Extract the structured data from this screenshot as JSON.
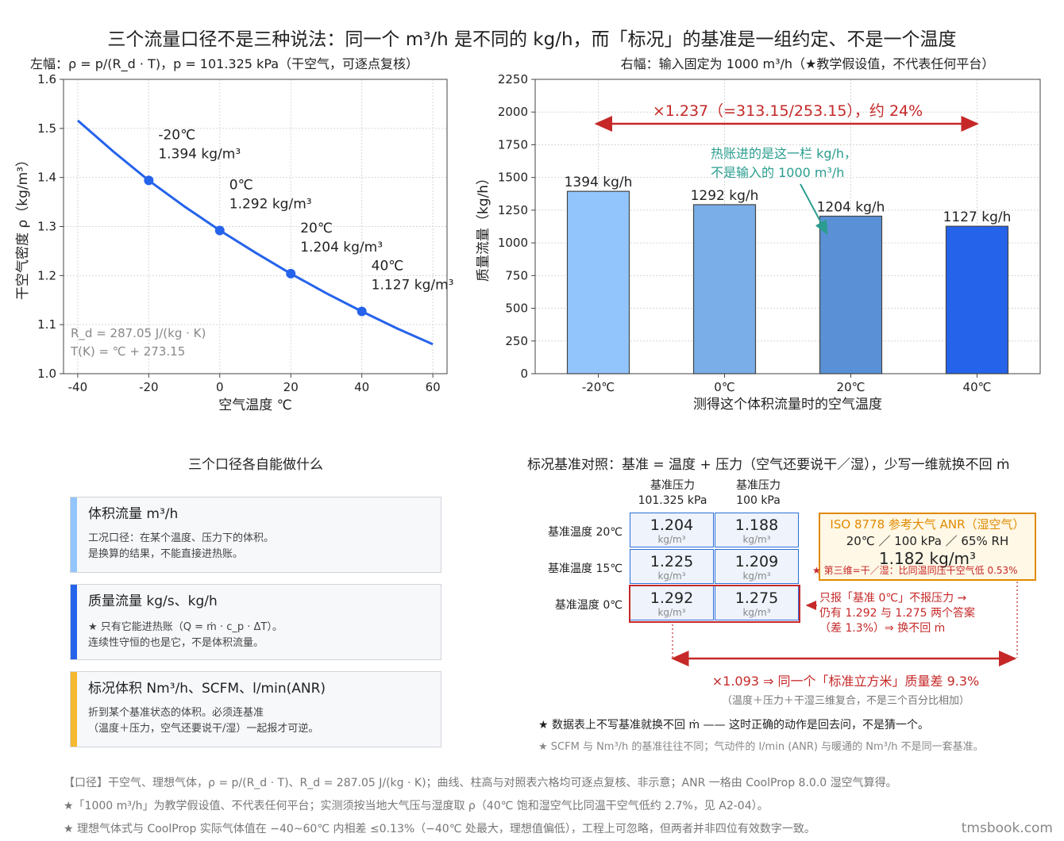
{
  "main_title": "三个流量口径不是三种说法：同一个 m³/h 是不同的 kg/h，而「标况」的基准是一组约定、不是一个温度",
  "chart_data": [
    {
      "type": "line",
      "title": "左幅：ρ = p/(R_d · T)，p = 101.325 kPa（干空气，可逐点复核）",
      "xlabel": "空气温度 ℃",
      "ylabel": "干空气密度 ρ（kg/m³）",
      "xlim": [
        -44,
        64
      ],
      "ylim": [
        1.0,
        1.6
      ],
      "xticks": [
        "-40",
        "-20",
        "0",
        "20",
        "40",
        "60"
      ],
      "yticks": [
        "1.0",
        "1.1",
        "1.2",
        "1.3",
        "1.4",
        "1.5",
        "1.6"
      ],
      "grid": true,
      "curve": {
        "x": [
          -40,
          -30,
          -20,
          -10,
          0,
          10,
          20,
          30,
          40,
          50,
          60
        ],
        "y": [
          1.516,
          1.453,
          1.394,
          1.341,
          1.292,
          1.247,
          1.204,
          1.164,
          1.127,
          1.092,
          1.06
        ]
      },
      "points": [
        {
          "x": -20,
          "y": 1.394,
          "label1": "-20℃",
          "label2": "1.394 kg/m³"
        },
        {
          "x": 0,
          "y": 1.292,
          "label1": "0℃",
          "label2": "1.292 kg/m³"
        },
        {
          "x": 20,
          "y": 1.204,
          "label1": "20℃",
          "label2": "1.204 kg/m³"
        },
        {
          "x": 40,
          "y": 1.127,
          "label1": "40℃",
          "label2": "1.127 kg/m³"
        }
      ],
      "notes": [
        "R_d = 287.05 J/(kg · K)",
        "T(K) = ℃ + 273.15"
      ],
      "color": "#2563eb"
    },
    {
      "type": "bar",
      "title": "右幅：输入固定为 1000 m³/h（★教学假设值，不代表任何平台）",
      "xlabel": "测得这个体积流量时的空气温度",
      "ylabel": "质量流量（kg/h）",
      "categories": [
        "-20℃",
        "0℃",
        "20℃",
        "40℃"
      ],
      "values": [
        1394,
        1292,
        1204,
        1127
      ],
      "value_labels": [
        "1394 kg/h",
        "1292 kg/h",
        "1204 kg/h",
        "1127 kg/h"
      ],
      "colors": [
        "#93c5fd",
        "#7aaee8",
        "#5a91d6",
        "#2563eb"
      ],
      "ylim": [
        0,
        2250
      ],
      "yticks": [
        "0",
        "250",
        "500",
        "750",
        "1000",
        "1250",
        "1500",
        "1750",
        "2000",
        "2250"
      ],
      "grid": true,
      "span_label": "×1.237（=313.15/253.15），约 24%",
      "annotation": [
        "热账进的是这一栏 kg/h，",
        "不是输入的 1000 m³/h"
      ],
      "annotation_color": "#2a9d8f"
    },
    {
      "type": "table",
      "title": "标况基准对照：基准 = 温度 + 压力（空气还要说干／湿），少写一维就换不回 ṁ",
      "columns": [
        [
          "基准压力",
          "101.325 kPa"
        ],
        [
          "基准压力",
          "100 kPa"
        ]
      ],
      "rows": [
        {
          "label": "基准温度 20℃",
          "values": [
            "1.204",
            "1.188"
          ]
        },
        {
          "label": "基准温度 15℃",
          "values": [
            "1.225",
            "1.209"
          ]
        },
        {
          "label": "基准温度 0℃",
          "values": [
            "1.292",
            "1.275"
          ]
        }
      ],
      "unit": "kg/m³"
    }
  ],
  "cards_title": "三个口径各自能做什么",
  "cards": [
    {
      "title": "体积流量  m³/h",
      "line1": "工况口径：在某个温度、压力下的体积。",
      "line2": "是换算的结果，不能直接进热账。",
      "color": "#93c5fd"
    },
    {
      "title": "质量流量  kg/s、kg/h",
      "line1": "★ 只有它能进热账（Q = ṁ · c_p · ΔT）。",
      "line2": "连续性守恒的也是它，不是体积流量。",
      "color": "#2563eb"
    },
    {
      "title": "标况体积  Nm³/h、SCFM、l/min(ANR)",
      "line1": "折到某个基准状态的体积。必须连基准",
      "line2": "（温度＋压力，空气还要说干/湿）一起报才可逆。",
      "color": "#f5b82e"
    }
  ],
  "iso_box": {
    "l1": "ISO 8778 参考大气 ANR（湿空气）",
    "l2": "20℃ ／ 100 kPa ／ 65% RH",
    "l3": "1.182 kg/m³",
    "l4": "★ 第三维=干／湿：比同温同压干空气低 0.53%"
  },
  "zero_note": [
    "只报「基准 0℃」不报压力 →",
    "仍有 1.292 与 1.275 两个答案",
    "（差 1.3%）⇒ 换不回 ṁ"
  ],
  "span_label": "×1.093 ⇒ 同一个「标准立方米」质量差 9.3%",
  "span_sub": "（温度＋压力＋干湿三维复合，不是三个百分比相加）",
  "table_note1": "★ 数据表上不写基准就换不回 ṁ —— 这时正确的动作是回去问，不是猜一个。",
  "table_note2": "★ SCFM 与 Nm³/h 的基准往往不同；气动件的 l/min (ANR) 与暖通的 Nm³/h 不是同一套基准。",
  "footnotes": [
    "【口径】干空气、理想气体，ρ = p/(R_d · T)、R_d = 287.05 J/(kg · K)；曲线、柱高与对照表六格均可逐点复核、非示意；ANR 一格由 CoolProp 8.0.0 湿空气算得。",
    "★「1000 m³/h」为教学假设值、不代表任何平台；实测须按当地大气压与湿度取 ρ（40℃ 饱和湿空气比同温干空气低约 2.7%，见 A2-04）。",
    "★ 理想气体式与 CoolProp 实际气体值在 −40~60℃ 内相差 ≤0.13%（−40℃ 处最大，理想值偏低），工程上可忽略，但两者并非四位有效数字一致。"
  ],
  "watermark": "tmsbook.com",
  "colors": {
    "red": "#c62828",
    "orange": "#e08a00",
    "teal": "#2a9d8f",
    "blue": "#2563eb"
  }
}
